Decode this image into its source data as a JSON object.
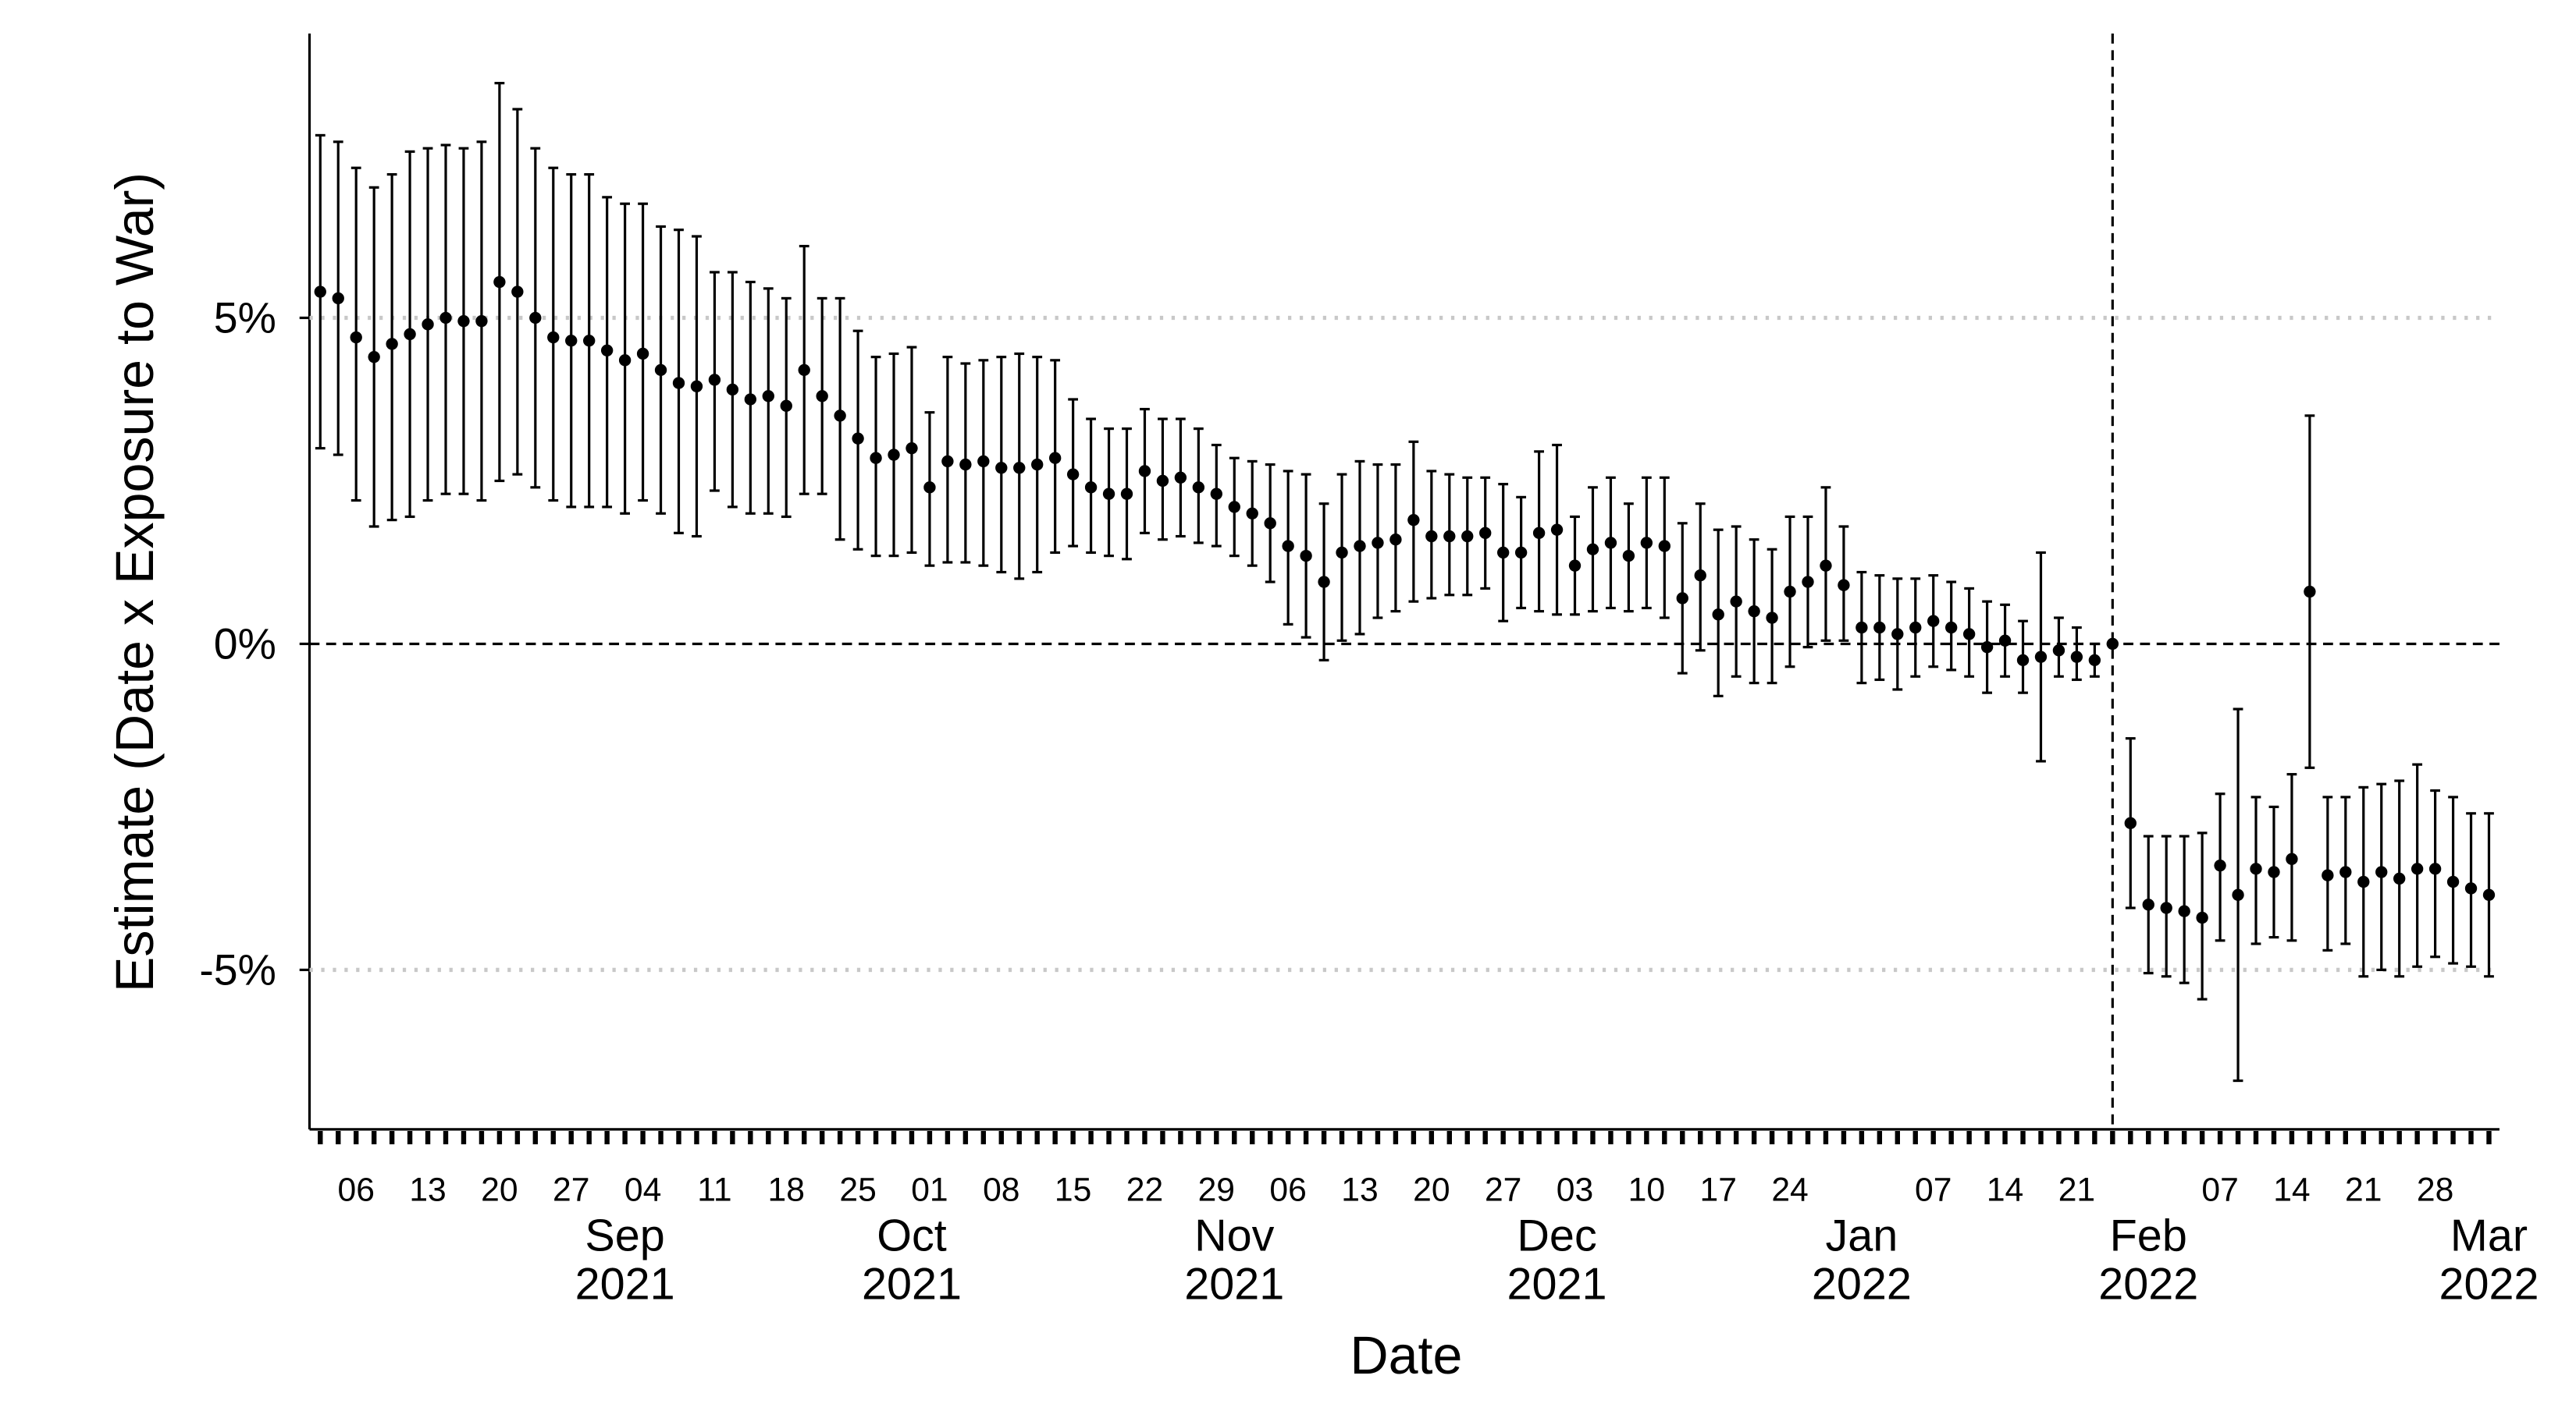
{
  "chart_data": {
    "type": "errorbar-points",
    "x_label": "Date",
    "y_label": "Estimate (Date x Exposure to War)",
    "xlim": [
      -100.6,
      21.4
    ],
    "ylim": [
      -7.42,
      9.36
    ],
    "yticks": [
      {
        "value": -5,
        "label": "-5%"
      },
      {
        "value": 0,
        "label": "0%"
      },
      {
        "value": 5,
        "label": "5%"
      }
    ],
    "grid": true,
    "hline": 0,
    "vline": 0,
    "color": "#000000",
    "xticks": [
      {
        "value": -98,
        "label": "06"
      },
      {
        "value": -94,
        "label": "13"
      },
      {
        "value": -90,
        "label": "20"
      },
      {
        "value": -86,
        "label": "27"
      },
      {
        "value": -82,
        "label": "04"
      },
      {
        "value": -78,
        "label": "11"
      },
      {
        "value": -74,
        "label": "18"
      },
      {
        "value": -70,
        "label": "25"
      },
      {
        "value": -66,
        "label": "01"
      },
      {
        "value": -62,
        "label": "08"
      },
      {
        "value": -58,
        "label": "15"
      },
      {
        "value": -54,
        "label": "22"
      },
      {
        "value": -50,
        "label": "29"
      },
      {
        "value": -46,
        "label": "06"
      },
      {
        "value": -42,
        "label": "13"
      },
      {
        "value": -38,
        "label": "20"
      },
      {
        "value": -34,
        "label": "27"
      },
      {
        "value": -30,
        "label": "03"
      },
      {
        "value": -26,
        "label": "10"
      },
      {
        "value": -22,
        "label": "17"
      },
      {
        "value": -18,
        "label": "24"
      },
      {
        "value": -10,
        "label": "07"
      },
      {
        "value": -6,
        "label": "14"
      },
      {
        "value": -2,
        "label": "21"
      },
      {
        "value": 6,
        "label": "07"
      },
      {
        "value": 10,
        "label": "14"
      },
      {
        "value": 14,
        "label": "21"
      },
      {
        "value": 18,
        "label": "28"
      }
    ],
    "month_ticks": [
      {
        "value": -83,
        "label": "Sep",
        "year": "2021"
      },
      {
        "value": -67,
        "label": "Oct",
        "year": "2021"
      },
      {
        "value": -49,
        "label": "Nov",
        "year": "2021"
      },
      {
        "value": -31,
        "label": "Dec",
        "year": "2021"
      },
      {
        "value": -14,
        "label": "Jan",
        "year": "2022"
      },
      {
        "value": 2,
        "label": "Feb",
        "year": "2022"
      },
      {
        "value": 21,
        "label": "Mar",
        "year": "2022"
      }
    ],
    "x": [
      -100,
      -99,
      -98,
      -97,
      -96,
      -95,
      -94,
      -93,
      -92,
      -91,
      -90,
      -89,
      -88,
      -87,
      -86,
      -85,
      -84,
      -83,
      -82,
      -81,
      -80,
      -79,
      -78,
      -77,
      -76,
      -75,
      -74,
      -73,
      -72,
      -71,
      -70,
      -69,
      -68,
      -67,
      -66,
      -65,
      -64,
      -63,
      -62,
      -61,
      -60,
      -59,
      -58,
      -57,
      -56,
      -55,
      -54,
      -53,
      -52,
      -51,
      -50,
      -49,
      -48,
      -47,
      -46,
      -45,
      -44,
      -43,
      -42,
      -41,
      -40,
      -39,
      -38,
      -37,
      -36,
      -35,
      -34,
      -33,
      -32,
      -31,
      -30,
      -29,
      -28,
      -27,
      -26,
      -25,
      -24,
      -23,
      -22,
      -21,
      -20,
      -19,
      -18,
      -17,
      -16,
      -15,
      -14,
      -13,
      -12,
      -11,
      -10,
      -9,
      -8,
      -7,
      -6,
      -5,
      -4,
      -3,
      -2,
      -1,
      0,
      1,
      2,
      3,
      4,
      5,
      6,
      7,
      8,
      9,
      10,
      11,
      12,
      13,
      14,
      15,
      16,
      17,
      18,
      19,
      20,
      21
    ],
    "values": [
      5.4,
      5.3,
      4.7,
      4.4,
      4.6,
      4.75,
      4.9,
      5.0,
      4.95,
      4.95,
      5.55,
      5.4,
      5.0,
      4.7,
      4.65,
      4.65,
      4.5,
      4.35,
      4.45,
      4.2,
      4.0,
      3.95,
      4.05,
      3.9,
      3.75,
      3.8,
      3.65,
      4.2,
      3.8,
      3.5,
      3.15,
      2.85,
      2.9,
      3.0,
      2.4,
      2.8,
      2.75,
      2.8,
      2.7,
      2.7,
      2.75,
      2.85,
      2.6,
      2.4,
      2.3,
      2.3,
      2.65,
      2.5,
      2.55,
      2.4,
      2.3,
      2.1,
      2.0,
      1.85,
      1.5,
      1.35,
      0.95,
      1.4,
      1.5,
      1.55,
      1.6,
      1.9,
      1.65,
      1.65,
      1.65,
      1.7,
      1.4,
      1.4,
      1.7,
      1.75,
      1.2,
      1.45,
      1.55,
      1.35,
      1.55,
      1.5,
      0.7,
      1.05,
      0.45,
      0.65,
      0.5,
      0.4,
      0.8,
      0.95,
      1.2,
      0.9,
      0.25,
      0.25,
      0.15,
      0.25,
      0.35,
      0.25,
      0.15,
      -0.05,
      0.05,
      -0.25,
      -0.2,
      -0.1,
      -0.2,
      -0.25,
      0,
      -2.75,
      -4.0,
      -4.05,
      -4.1,
      -4.2,
      -3.4,
      -3.85,
      -3.45,
      -3.5,
      -3.3,
      0.8,
      -3.55,
      -3.5,
      -3.65,
      -3.5,
      -3.6,
      -3.45,
      -3.45,
      -3.65,
      -3.75,
      -3.85
    ],
    "lower": [
      3.0,
      2.9,
      2.2,
      1.8,
      1.9,
      1.95,
      2.2,
      2.3,
      2.3,
      2.2,
      2.5,
      2.6,
      2.4,
      2.2,
      2.1,
      2.1,
      2.1,
      2.0,
      2.2,
      2.0,
      1.7,
      1.65,
      2.35,
      2.1,
      2.0,
      2.0,
      1.95,
      2.3,
      2.3,
      1.6,
      1.45,
      1.35,
      1.35,
      1.4,
      1.2,
      1.25,
      1.25,
      1.2,
      1.1,
      1.0,
      1.1,
      1.4,
      1.5,
      1.4,
      1.35,
      1.3,
      1.7,
      1.6,
      1.65,
      1.55,
      1.5,
      1.35,
      1.2,
      0.95,
      0.3,
      0.1,
      -0.25,
      0.05,
      0.15,
      0.4,
      0.5,
      0.65,
      0.7,
      0.75,
      0.75,
      0.85,
      0.35,
      0.55,
      0.5,
      0.45,
      0.45,
      0.5,
      0.55,
      0.5,
      0.55,
      0.4,
      -0.45,
      -0.1,
      -0.8,
      -0.5,
      -0.6,
      -0.6,
      -0.35,
      -0.05,
      0.05,
      0.05,
      -0.6,
      -0.55,
      -0.7,
      -0.5,
      -0.35,
      -0.4,
      -0.5,
      -0.75,
      -0.5,
      -0.75,
      -1.8,
      -0.5,
      -0.55,
      -0.5,
      null,
      -4.05,
      -5.05,
      -5.1,
      -5.2,
      -5.45,
      -4.55,
      -6.7,
      -4.6,
      -4.5,
      -4.55,
      -1.9,
      -4.7,
      -4.6,
      -5.1,
      -5.0,
      -5.1,
      -4.95,
      -4.8,
      -4.9,
      -4.95,
      -5.1
    ],
    "upper": [
      7.8,
      7.7,
      7.3,
      7.0,
      7.2,
      7.55,
      7.6,
      7.65,
      7.6,
      7.7,
      8.6,
      8.2,
      7.6,
      7.3,
      7.2,
      7.2,
      6.85,
      6.75,
      6.75,
      6.4,
      6.35,
      6.25,
      5.7,
      5.7,
      5.55,
      5.45,
      5.3,
      6.1,
      5.3,
      5.3,
      4.8,
      4.4,
      4.45,
      4.55,
      3.55,
      4.4,
      4.3,
      4.35,
      4.4,
      4.45,
      4.4,
      4.35,
      3.75,
      3.45,
      3.3,
      3.3,
      3.6,
      3.45,
      3.45,
      3.3,
      3.05,
      2.85,
      2.8,
      2.75,
      2.65,
      2.6,
      2.15,
      2.6,
      2.8,
      2.75,
      2.75,
      3.1,
      2.65,
      2.6,
      2.55,
      2.55,
      2.45,
      2.25,
      2.95,
      3.05,
      1.95,
      2.4,
      2.55,
      2.15,
      2.55,
      2.55,
      1.85,
      2.15,
      1.75,
      1.8,
      1.6,
      1.45,
      1.95,
      1.95,
      2.4,
      1.8,
      1.1,
      1.05,
      1.0,
      1.0,
      1.05,
      0.95,
      0.85,
      0.65,
      0.6,
      0.35,
      1.4,
      0.4,
      0.25,
      0.0,
      null,
      -1.45,
      -2.95,
      -2.95,
      -2.95,
      -2.9,
      -2.3,
      -1.0,
      -2.35,
      -2.5,
      -2.0,
      3.5,
      -2.35,
      -2.35,
      -2.2,
      -2.15,
      -2.1,
      -1.85,
      -2.25,
      -2.35,
      -2.6,
      -2.6
    ]
  }
}
